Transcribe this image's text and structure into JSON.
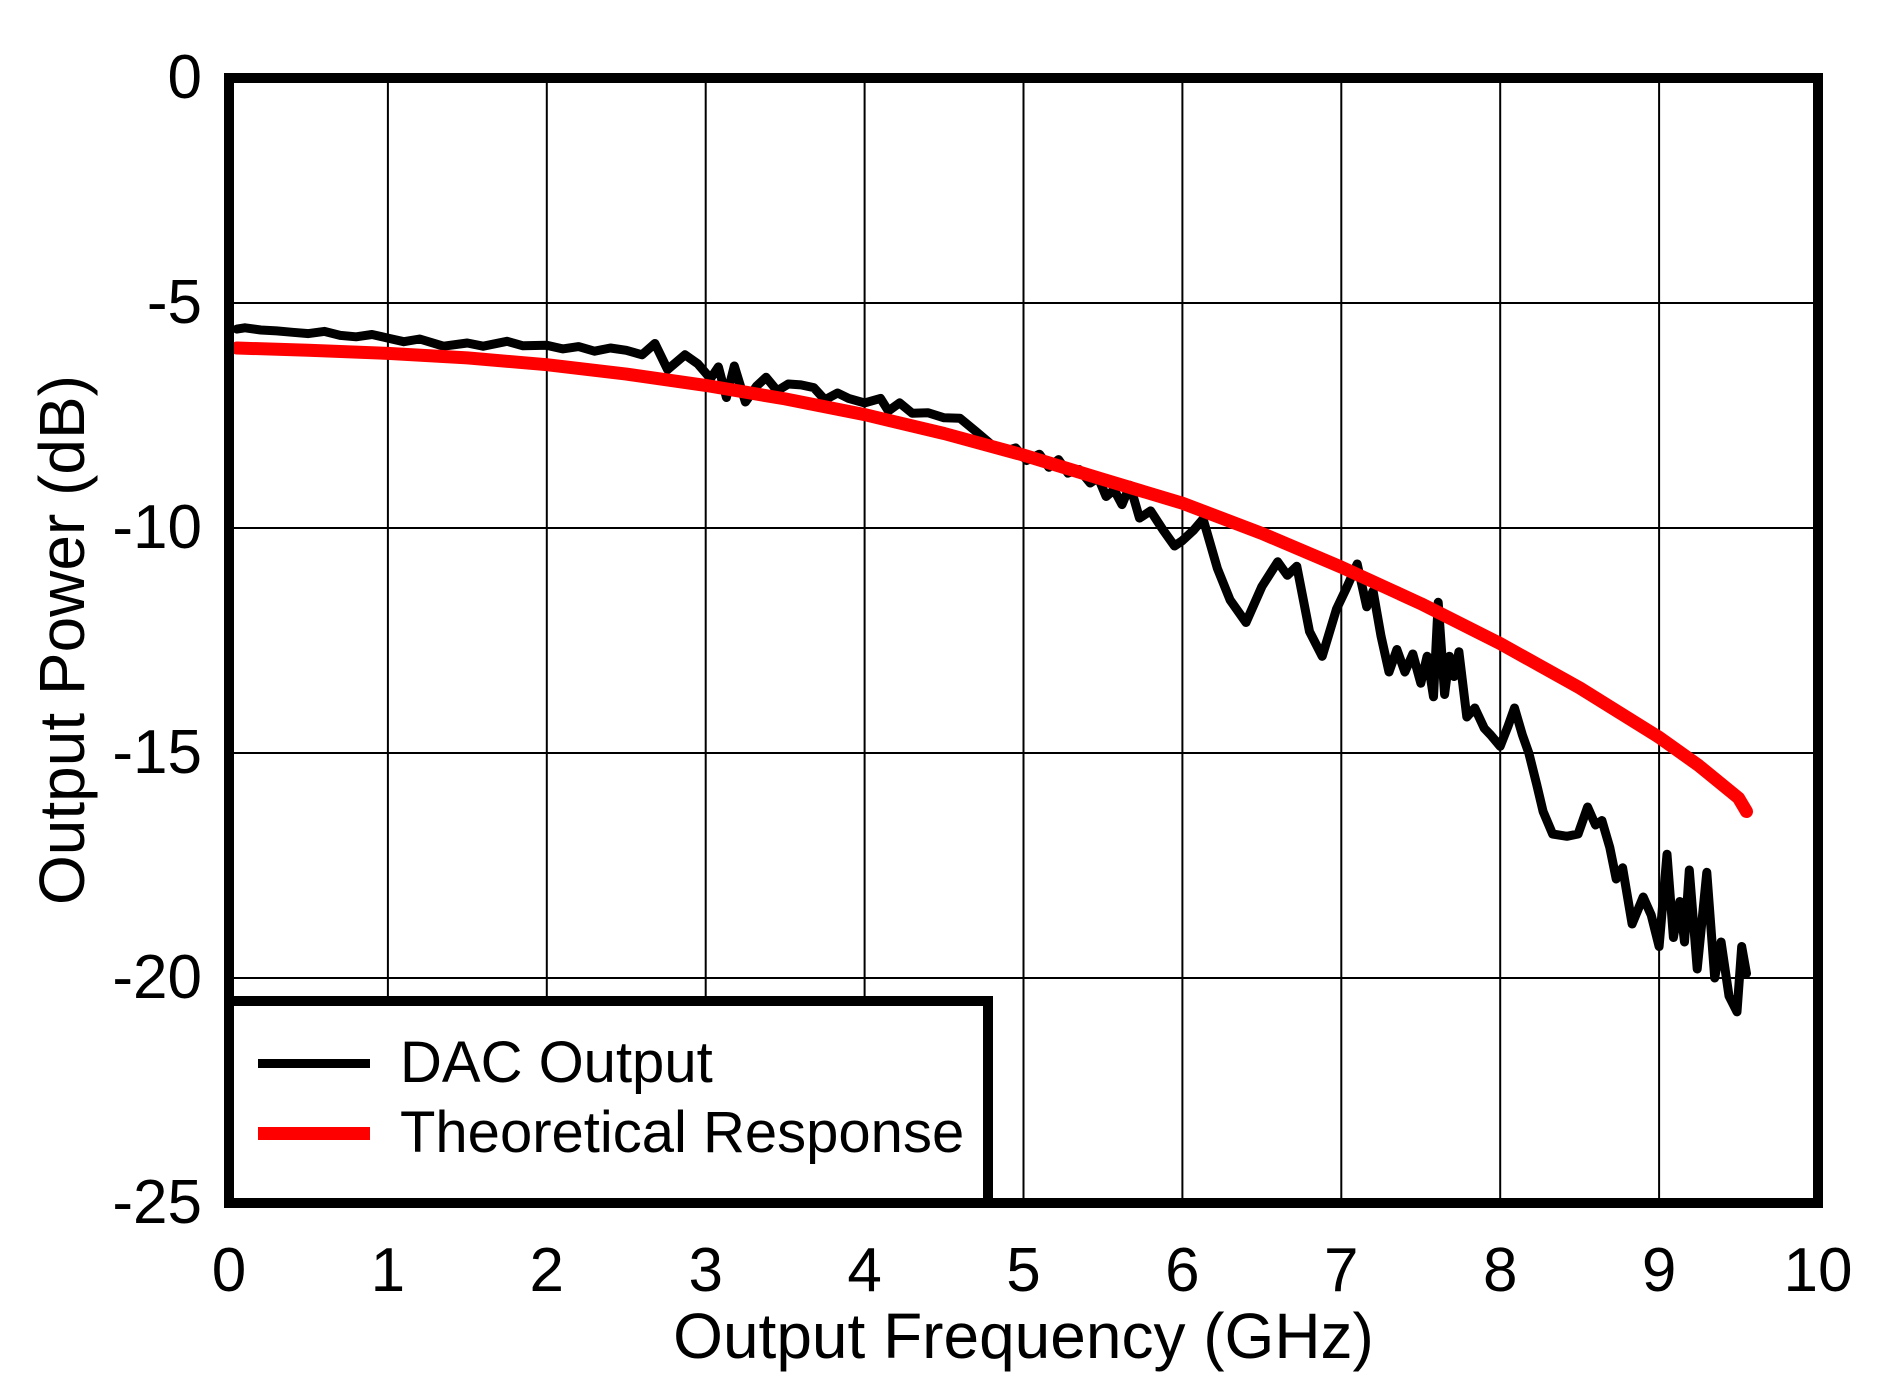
{
  "figure": {
    "background": "#ffffff"
  },
  "chart_data": {
    "type": "line",
    "title": "",
    "xlabel": "Output Frequency (GHz)",
    "ylabel": "Output Power (dB)",
    "xlim": [
      0,
      10
    ],
    "ylim": [
      -25,
      0
    ],
    "x_ticks": [
      0,
      1,
      2,
      3,
      4,
      5,
      6,
      7,
      8,
      9,
      10
    ],
    "y_ticks": [
      0,
      -5,
      -10,
      -15,
      -20,
      -25
    ],
    "grid": true,
    "grid_color": "#000000",
    "legend_position": "bottom-left",
    "series": [
      {
        "name": "DAC Output",
        "color": "#000000",
        "line_width": 9,
        "points": [
          [
            0.05,
            -5.58
          ],
          [
            0.1,
            -5.55
          ],
          [
            0.2,
            -5.6
          ],
          [
            0.3,
            -5.62
          ],
          [
            0.4,
            -5.65
          ],
          [
            0.5,
            -5.68
          ],
          [
            0.6,
            -5.63
          ],
          [
            0.7,
            -5.72
          ],
          [
            0.8,
            -5.75
          ],
          [
            0.9,
            -5.7
          ],
          [
            1.0,
            -5.78
          ],
          [
            1.1,
            -5.86
          ],
          [
            1.2,
            -5.8
          ],
          [
            1.35,
            -5.96
          ],
          [
            1.5,
            -5.89
          ],
          [
            1.6,
            -5.96
          ],
          [
            1.75,
            -5.85
          ],
          [
            1.85,
            -5.95
          ],
          [
            2.0,
            -5.94
          ],
          [
            2.1,
            -6.02
          ],
          [
            2.2,
            -5.97
          ],
          [
            2.3,
            -6.07
          ],
          [
            2.4,
            -6.0
          ],
          [
            2.5,
            -6.05
          ],
          [
            2.6,
            -6.15
          ],
          [
            2.68,
            -5.9
          ],
          [
            2.76,
            -6.48
          ],
          [
            2.87,
            -6.15
          ],
          [
            2.95,
            -6.35
          ],
          [
            3.03,
            -6.68
          ],
          [
            3.08,
            -6.42
          ],
          [
            3.13,
            -7.1
          ],
          [
            3.18,
            -6.4
          ],
          [
            3.25,
            -7.2
          ],
          [
            3.32,
            -6.85
          ],
          [
            3.38,
            -6.65
          ],
          [
            3.45,
            -6.95
          ],
          [
            3.52,
            -6.8
          ],
          [
            3.6,
            -6.82
          ],
          [
            3.68,
            -6.88
          ],
          [
            3.75,
            -7.15
          ],
          [
            3.83,
            -7.0
          ],
          [
            3.9,
            -7.12
          ],
          [
            4.0,
            -7.22
          ],
          [
            4.1,
            -7.12
          ],
          [
            4.15,
            -7.4
          ],
          [
            4.22,
            -7.22
          ],
          [
            4.3,
            -7.45
          ],
          [
            4.4,
            -7.44
          ],
          [
            4.5,
            -7.55
          ],
          [
            4.6,
            -7.56
          ],
          [
            4.7,
            -7.85
          ],
          [
            4.8,
            -8.15
          ],
          [
            4.88,
            -8.3
          ],
          [
            4.95,
            -8.22
          ],
          [
            5.02,
            -8.5
          ],
          [
            5.1,
            -8.36
          ],
          [
            5.16,
            -8.65
          ],
          [
            5.22,
            -8.48
          ],
          [
            5.28,
            -8.78
          ],
          [
            5.35,
            -8.7
          ],
          [
            5.42,
            -9.0
          ],
          [
            5.47,
            -8.88
          ],
          [
            5.52,
            -9.3
          ],
          [
            5.57,
            -9.15
          ],
          [
            5.62,
            -9.48
          ],
          [
            5.67,
            -9.05
          ],
          [
            5.73,
            -9.78
          ],
          [
            5.8,
            -9.62
          ],
          [
            5.88,
            -10.05
          ],
          [
            5.95,
            -10.4
          ],
          [
            6.0,
            -10.28
          ],
          [
            6.07,
            -10.05
          ],
          [
            6.13,
            -9.8
          ],
          [
            6.22,
            -10.9
          ],
          [
            6.3,
            -11.6
          ],
          [
            6.4,
            -12.1
          ],
          [
            6.5,
            -11.3
          ],
          [
            6.6,
            -10.75
          ],
          [
            6.66,
            -11.05
          ],
          [
            6.72,
            -10.85
          ],
          [
            6.8,
            -12.3
          ],
          [
            6.88,
            -12.85
          ],
          [
            6.97,
            -11.8
          ],
          [
            7.03,
            -11.35
          ],
          [
            7.1,
            -10.8
          ],
          [
            7.16,
            -11.75
          ],
          [
            7.2,
            -11.4
          ],
          [
            7.25,
            -12.4
          ],
          [
            7.3,
            -13.2
          ],
          [
            7.35,
            -12.7
          ],
          [
            7.4,
            -13.2
          ],
          [
            7.45,
            -12.8
          ],
          [
            7.5,
            -13.45
          ],
          [
            7.54,
            -12.85
          ],
          [
            7.58,
            -13.75
          ],
          [
            7.61,
            -11.65
          ],
          [
            7.65,
            -13.7
          ],
          [
            7.68,
            -12.85
          ],
          [
            7.71,
            -13.3
          ],
          [
            7.74,
            -12.75
          ],
          [
            7.79,
            -14.2
          ],
          [
            7.84,
            -14.0
          ],
          [
            7.9,
            -14.45
          ],
          [
            7.94,
            -14.6
          ],
          [
            8.0,
            -14.85
          ],
          [
            8.05,
            -14.4
          ],
          [
            8.09,
            -14.0
          ],
          [
            8.14,
            -14.6
          ],
          [
            8.18,
            -15.0
          ],
          [
            8.23,
            -15.7
          ],
          [
            8.27,
            -16.3
          ],
          [
            8.33,
            -16.8
          ],
          [
            8.42,
            -16.85
          ],
          [
            8.49,
            -16.8
          ],
          [
            8.55,
            -16.2
          ],
          [
            8.6,
            -16.6
          ],
          [
            8.64,
            -16.5
          ],
          [
            8.69,
            -17.1
          ],
          [
            8.73,
            -17.8
          ],
          [
            8.77,
            -17.55
          ],
          [
            8.83,
            -18.8
          ],
          [
            8.9,
            -18.2
          ],
          [
            8.95,
            -18.6
          ],
          [
            9.0,
            -19.3
          ],
          [
            9.05,
            -17.25
          ],
          [
            9.09,
            -19.1
          ],
          [
            9.13,
            -18.3
          ],
          [
            9.16,
            -19.2
          ],
          [
            9.19,
            -17.6
          ],
          [
            9.24,
            -19.8
          ],
          [
            9.3,
            -17.65
          ],
          [
            9.35,
            -20.0
          ],
          [
            9.39,
            -19.2
          ],
          [
            9.44,
            -20.4
          ],
          [
            9.49,
            -20.75
          ],
          [
            9.52,
            -19.3
          ],
          [
            9.55,
            -19.9
          ]
        ]
      },
      {
        "name": "Theoretical Response",
        "color": "#ff0000",
        "line_width": 13,
        "points": [
          [
            0.05,
            -6.0
          ],
          [
            0.5,
            -6.05
          ],
          [
            1.0,
            -6.12
          ],
          [
            1.5,
            -6.22
          ],
          [
            2.0,
            -6.37
          ],
          [
            2.5,
            -6.58
          ],
          [
            3.0,
            -6.83
          ],
          [
            3.5,
            -7.13
          ],
          [
            4.0,
            -7.48
          ],
          [
            4.5,
            -7.9
          ],
          [
            5.0,
            -8.38
          ],
          [
            5.5,
            -8.92
          ],
          [
            6.0,
            -9.45
          ],
          [
            6.5,
            -10.12
          ],
          [
            7.0,
            -10.87
          ],
          [
            7.5,
            -11.68
          ],
          [
            8.0,
            -12.57
          ],
          [
            8.5,
            -13.55
          ],
          [
            9.0,
            -14.65
          ],
          [
            9.25,
            -15.28
          ],
          [
            9.5,
            -16.0
          ],
          [
            9.55,
            -16.3
          ]
        ]
      }
    ]
  }
}
